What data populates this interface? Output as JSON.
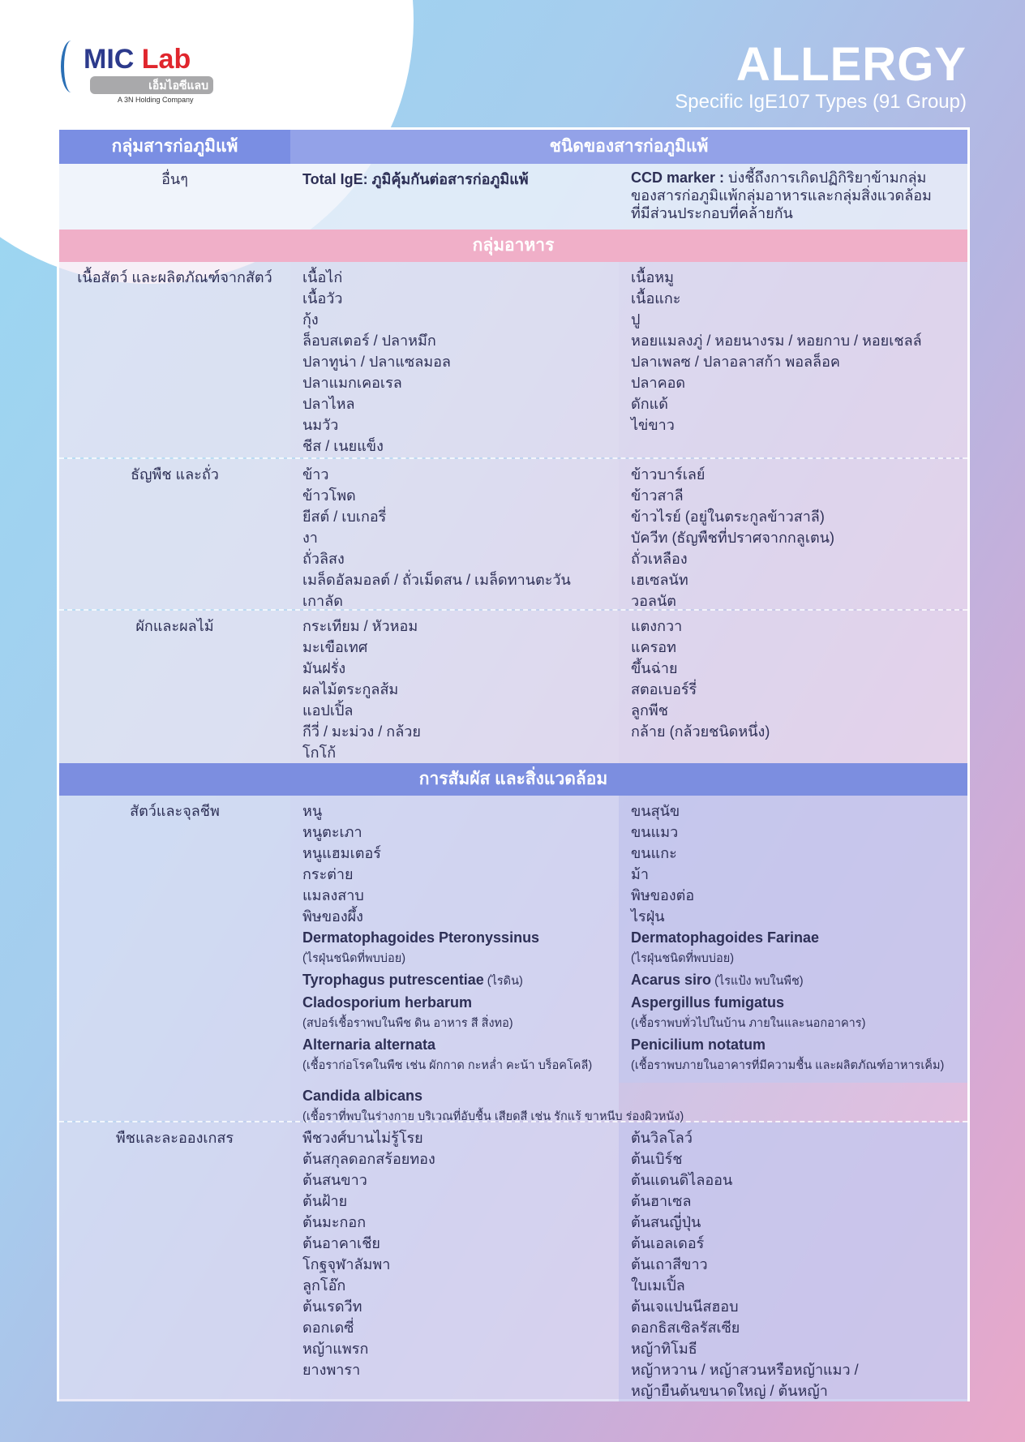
{
  "brand": {
    "name_a": "MIC",
    "name_b": "Lab",
    "thai": "เอ็มไอซีแลบ",
    "tagline": "A 3N Holding Company"
  },
  "title": {
    "main": "ALLERGY",
    "sub": "Specific IgE107 Types (91 Group)"
  },
  "colors": {
    "header": "#7a8ee3",
    "food_band": "#f0afc8",
    "env_band": "#7c8ee0"
  },
  "table": {
    "col1": "กลุ่มสารก่อภูมิแพ้",
    "col2": "ชนิดของสารก่อภูมิแพ้",
    "other": {
      "group": "อื่นๆ",
      "a": "Total IgE: ภูมิคุ้มกันต่อสารก่อภูมิแพ้",
      "b_bold": "CCD marker :",
      "b": " บ่งชี้ถึงการเกิดปฏิกิริยาข้ามกลุ่มของสารก่อภูมิแพ้กลุ่มอาหารและกลุ่มสิ่งแวดล้อมที่มีส่วนประกอบที่คล้ายกัน"
    },
    "food": {
      "title": "กลุ่มอาหาร",
      "rows": [
        {
          "group": "เนื้อสัตว์ และผลิตภัณฑ์จากสัตว์",
          "a": [
            "เนื้อไก่",
            "เนื้อวัว",
            "กุ้ง",
            "ล็อบสเตอร์ / ปลาหมึก",
            "ปลาทูน่า / ปลาแซลมอล",
            "ปลาแมกเคอเรล",
            "ปลาไหล",
            "นมวัว",
            "ชีส / เนยแข็ง"
          ],
          "b": [
            "เนื้อหมู",
            "เนื้อแกะ",
            "ปู",
            "หอยแมลงภู่ / หอยนางรม / หอยกาบ / หอยเชลล์",
            "ปลาเพลซ / ปลาอลาสก้า พอลล็อค",
            "ปลาคอด",
            "ดักแด้",
            "ไข่ขาว"
          ]
        },
        {
          "group": "ธัญพืช และถั่ว",
          "a": [
            "ข้าว",
            "ข้าวโพด",
            "ยีสต์ / เบเกอรี่",
            "งา",
            "ถั่วลิสง",
            "เมล็ดอัลมอลต์ / ถั่วเม็ดสน / เมล็ดทานตะวัน",
            "เกาลัด"
          ],
          "b": [
            "ข้าวบาร์เลย์",
            "ข้าวสาลี",
            "ข้าวไรย์ (อยู่ในตระกูลข้าวสาลี)",
            "บัควีท (ธัญพืชที่ปราศจากกลูเตน)",
            "ถั่วเหลือง",
            "เฮเซลนัท",
            "วอลนัต"
          ]
        },
        {
          "group": "ผักและผลไม้",
          "a": [
            "กระเทียม / หัวหอม",
            "มะเขือเทศ",
            "มันฝรั่ง",
            "ผลไม้ตระกูลส้ม",
            "แอปเปิ้ล",
            "กีวี่ / มะม่วง / กล้วย",
            "โกโก้"
          ],
          "b": [
            "แตงกวา",
            "แครอท",
            "ขึ้นฉ่าย",
            "สตอเบอร์รี่",
            "ลูกพีช",
            "กล้าย (กล้วยชนิดหนึ่ง)"
          ]
        }
      ]
    },
    "env": {
      "title": "การสัมผัส และสิ่งแวดล้อม",
      "rows": [
        {
          "group": "สัตว์และจุลชีพ",
          "a": [
            "หนู",
            "หนูตะเภา",
            "หนูแฮมเตอร์",
            "กระต่าย",
            "แมลงสาบ",
            "พิษของผึ้ง"
          ],
          "b": [
            "ขนสุนัข",
            "ขนแมว",
            "ขนแกะ",
            "ม้า",
            "พิษของต่อ",
            "ไรฝุ่น"
          ],
          "a_sci": [
            {
              "name": "Dermatophagoides Pteronyssinus",
              "note": "(ไรฝุ่นชนิดที่พบบ่อย)",
              "inline": ""
            },
            {
              "name": "Tyrophagus putrescentiae",
              "note": "",
              "inline": " (ไรดิน)"
            },
            {
              "name": "Cladosporium herbarum",
              "note": "(สปอร์เชื้อราพบในพืช ดิน อาหาร สี สิ่งทอ)",
              "inline": ""
            },
            {
              "name": "Alternaria alternata",
              "note": "(เชื้อราก่อโรคในพืช เช่น ผักกาด กะหล่ำ คะน้า บร็อคโคลี)",
              "inline": ""
            }
          ],
          "b_sci": [
            {
              "name": "Dermatophagoides Farinae",
              "note": "(ไรฝุ่นชนิดที่พบบ่อย)",
              "inline": ""
            },
            {
              "name": "Acarus siro",
              "note": "",
              "inline": " (ไรแป้ง พบในพืช)"
            },
            {
              "name": "Aspergillus fumigatus",
              "note": "(เชื้อราพบทั่วไปในบ้าน ภายในและนอกอาคาร)",
              "inline": ""
            },
            {
              "name": "Penicilium notatum",
              "note": "(เชื้อราพบภายในอาคารที่มีความชื้น และผลิตภัณฑ์อาหารเค็ม)",
              "inline": ""
            }
          ],
          "span": {
            "name": "Candida albicans",
            "note": "(เชื้อราที่พบในร่างกาย บริเวณที่อับชื้น เสียดสี เช่น รักแร้ ขาหนีบ ร่องผิวหนัง)"
          }
        },
        {
          "group": "พืชและละอองเกสร",
          "a": [
            "พืชวงศ์บานไม่รู้โรย",
            "ต้นสกุลดอกสร้อยทอง",
            "ต้นสนขาว",
            "ต้นฝ้าย",
            "ต้นมะกอก",
            "ต้นอาคาเชีย",
            "โกฐจุฬาลัมพา",
            "ลูกโอ๊ก",
            "ต้นเรดวีท",
            "ดอกเดซี่",
            "หญ้าแพรก",
            "ยางพารา"
          ],
          "b": [
            "ต้นวิลโลว์",
            "ต้นเบิร์ช",
            "ต้นแดนดิไลออน",
            "ต้นฮาเซล",
            "ต้นสนญี่ปุ่น",
            "ต้นเอลเดอร์",
            "ต้นเถาสีขาว",
            "ใบเมเปิ้ล",
            "ต้นเจแปนนีสฮอบ",
            "ดอกธิสเซิลรัสเซีย",
            "หญ้าทิโมธี",
            "หญ้าหวาน / หญ้าสวนหรือหญ้าแมว /",
            "หญ้ายืนต้นขนาดใหญ่ / ต้นหญ้า"
          ]
        }
      ]
    }
  }
}
